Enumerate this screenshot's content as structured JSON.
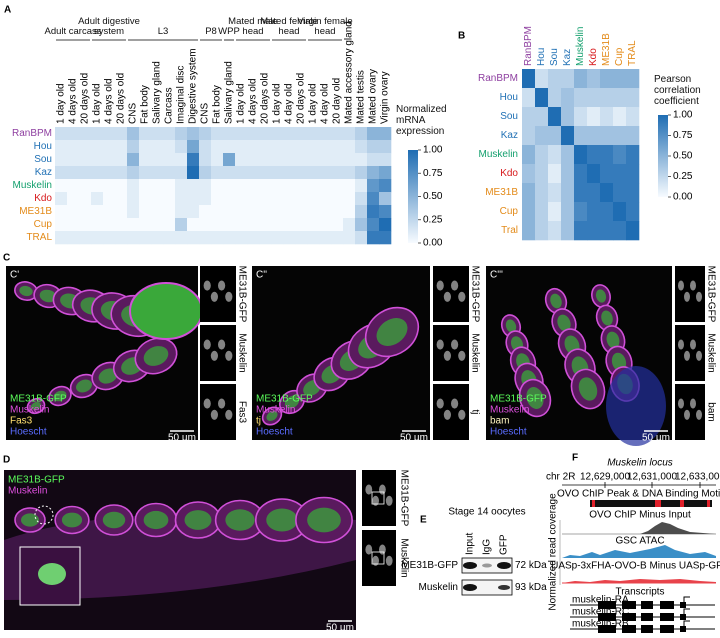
{
  "panels": {
    "A": {
      "label": "A",
      "groups": [
        {
          "name": "Adult carcass",
          "columns": [
            "1 day old",
            "4 days old",
            "20 days old"
          ]
        },
        {
          "name": "Adult digestive system",
          "columns": [
            "1 day old",
            "4 days old",
            "20 days old"
          ]
        },
        {
          "name": "L3",
          "columns": [
            "CNS",
            "Fat body",
            "Salivary gland",
            "Carcass",
            "Imaginal disc",
            "Digestive system"
          ]
        },
        {
          "name": "P8",
          "columns": [
            "CNS",
            "Fat body"
          ]
        },
        {
          "name": "WPP",
          "columns": [
            "Salivary gland"
          ]
        },
        {
          "name": "Mated male head",
          "columns": [
            "1 day old",
            "4 days old",
            "20 days old"
          ]
        },
        {
          "name": "Mated female head",
          "columns": [
            "1 day old",
            "4 day old",
            "20 days old"
          ]
        },
        {
          "name": "Virgin female head",
          "columns": [
            "1 day old",
            "4 day old",
            "20 day old"
          ]
        }
      ],
      "ungrouped_columns": [
        "Mated accessory gland",
        "Mated testis",
        "Mated ovary",
        "Virgin ovary"
      ],
      "rows": [
        "RanBPM",
        "Hou",
        "Sou",
        "Kaz",
        "Muskelin",
        "Kdo",
        "ME31B",
        "Cup",
        "TRAL"
      ],
      "row_colors": [
        "#8e3fa0",
        "#2171b5",
        "#2171b5",
        "#2171b5",
        "#14a06e",
        "#d7191c",
        "#e38b1a",
        "#e38b1a",
        "#e38b1a"
      ],
      "values": [
        [
          0.2,
          0.2,
          0.2,
          0.2,
          0.2,
          0.2,
          0.4,
          0.2,
          0.2,
          0.2,
          0.3,
          0.4,
          0.3,
          0.2,
          0.2,
          0.2,
          0.2,
          0.2,
          0.2,
          0.2,
          0.2,
          0.2,
          0.2,
          0.2,
          0.2,
          0.3,
          0.5,
          0.5
        ],
        [
          0.1,
          0.1,
          0.1,
          0.1,
          0.1,
          0.1,
          0.3,
          0.1,
          0.1,
          0.1,
          0.2,
          0.6,
          0.2,
          0.1,
          0.1,
          0.1,
          0.1,
          0.1,
          0.1,
          0.1,
          0.1,
          0.1,
          0.1,
          0.1,
          0.1,
          0.2,
          0.3,
          0.3
        ],
        [
          0.1,
          0.1,
          0.1,
          0.1,
          0.1,
          0.1,
          0.5,
          0.1,
          0.1,
          0.1,
          0.1,
          0.9,
          0.2,
          0.1,
          0.6,
          0.1,
          0.1,
          0.1,
          0.1,
          0.1,
          0.1,
          0.1,
          0.1,
          0.1,
          0.1,
          0.1,
          0.2,
          0.2
        ],
        [
          0.2,
          0.2,
          0.2,
          0.2,
          0.2,
          0.2,
          0.3,
          0.2,
          0.2,
          0.2,
          0.2,
          1.0,
          0.3,
          0.2,
          0.2,
          0.2,
          0.2,
          0.2,
          0.2,
          0.2,
          0.2,
          0.2,
          0.2,
          0.2,
          0.2,
          0.3,
          0.5,
          0.6
        ],
        [
          0,
          0,
          0,
          0,
          0,
          0,
          0.1,
          0,
          0,
          0,
          0.1,
          0.1,
          0.1,
          0,
          0,
          0,
          0,
          0,
          0,
          0,
          0,
          0,
          0,
          0,
          0,
          0.1,
          0.7,
          0.8
        ],
        [
          0.1,
          0,
          0,
          0.1,
          0,
          0,
          0.1,
          0,
          0,
          0,
          0.1,
          0.1,
          0.1,
          0,
          0,
          0,
          0,
          0,
          0,
          0,
          0,
          0,
          0,
          0,
          0,
          0.2,
          0.8,
          0.4
        ],
        [
          0,
          0,
          0,
          0,
          0,
          0,
          0.1,
          0,
          0,
          0,
          0.1,
          0.1,
          0,
          0,
          0,
          0,
          0,
          0,
          0,
          0,
          0,
          0,
          0,
          0,
          0,
          0.3,
          0.9,
          0.8
        ],
        [
          0,
          0,
          0,
          0,
          0,
          0,
          0,
          0,
          0,
          0,
          0.3,
          0,
          0,
          0,
          0,
          0,
          0,
          0,
          0,
          0,
          0,
          0,
          0,
          0,
          0.1,
          0.4,
          0.8,
          1.0
        ],
        [
          0.1,
          0.1,
          0.1,
          0.1,
          0.1,
          0.1,
          0.1,
          0.1,
          0.1,
          0.1,
          0.1,
          0.1,
          0.1,
          0.1,
          0.1,
          0.1,
          0.1,
          0.1,
          0.1,
          0.1,
          0.1,
          0.1,
          0.1,
          0.1,
          0.1,
          0.2,
          0.9,
          0.9
        ]
      ],
      "colormap": [
        "#f7fbff",
        "#1f6db3"
      ],
      "colorbar": {
        "title": "Normalized mRNA expression",
        "lim": [
          0,
          1
        ],
        "ticks": [
          {
            "value": 0,
            "label": "0.00"
          },
          {
            "value": 0.25,
            "label": "0.25"
          },
          {
            "value": 0.5,
            "label": "0.50"
          },
          {
            "value": 0.75,
            "label": "0.75"
          },
          {
            "value": 1,
            "label": "1.00"
          }
        ]
      }
    },
    "B": {
      "label": "B",
      "columns": [
        "RanBPM",
        "Hou",
        "Sou",
        "Kaz",
        "Muskelin",
        "Kdo",
        "ME31B",
        "Cup",
        "TRAL"
      ],
      "rows": [
        "RanBPM",
        "Hou",
        "Sou",
        "Kaz",
        "Muskelin",
        "Kdo",
        "ME31B",
        "Cup",
        "Tral"
      ],
      "label_colors": [
        "#8e3fa0",
        "#2171b5",
        "#2171b5",
        "#2171b5",
        "#14a06e",
        "#d7191c",
        "#e38b1a",
        "#e38b1a",
        "#e38b1a"
      ],
      "values": [
        [
          1,
          0.2,
          0.3,
          0.3,
          0.5,
          0.4,
          0.5,
          0.5,
          0.5
        ],
        [
          0.2,
          1,
          0.3,
          0.4,
          0.3,
          0.3,
          0.3,
          0.3,
          0.3
        ],
        [
          0.3,
          0.3,
          1,
          0.4,
          0.2,
          0.1,
          0.2,
          0.1,
          0.2
        ],
        [
          0.3,
          0.4,
          0.4,
          1,
          0.4,
          0.4,
          0.4,
          0.4,
          0.4
        ],
        [
          0.5,
          0.3,
          0.2,
          0.4,
          1,
          0.9,
          0.9,
          0.8,
          0.9
        ],
        [
          0.4,
          0.3,
          0.1,
          0.4,
          0.9,
          1,
          0.9,
          0.9,
          0.9
        ],
        [
          0.5,
          0.3,
          0.2,
          0.4,
          0.9,
          0.9,
          1,
          0.9,
          0.9
        ],
        [
          0.5,
          0.3,
          0.1,
          0.4,
          0.8,
          0.9,
          0.9,
          1,
          0.9
        ],
        [
          0.5,
          0.3,
          0.2,
          0.4,
          0.9,
          0.9,
          0.9,
          0.9,
          1
        ]
      ],
      "colormap": [
        "#f7fbff",
        "#1f6db3"
      ],
      "colorbar": {
        "title": "Pearson correlation coefficient",
        "lim": [
          0,
          1
        ],
        "ticks": [
          {
            "value": 0,
            "label": "0.00"
          },
          {
            "value": 0.25,
            "label": "0.25"
          },
          {
            "value": 0.5,
            "label": "0.50"
          },
          {
            "value": 0.75,
            "label": "0.75"
          },
          {
            "value": 1,
            "label": "1.00"
          }
        ]
      }
    },
    "C": {
      "label": "C",
      "images": [
        {
          "label": "C'",
          "overlay": [
            {
              "text": "ME31B-GFP",
              "color": "#5cff5c"
            },
            {
              "text": "Muskelin",
              "color": "#e050e0"
            },
            {
              "text": "Fas3",
              "color": "#ffe070"
            },
            {
              "text": "Hoescht",
              "color": "#5a6cff"
            }
          ],
          "scale": "50 µm",
          "side": [
            "ME31B-GFP",
            "Muskelin",
            "Fas3"
          ]
        },
        {
          "label": "C''",
          "overlay": [
            {
              "text": "ME31B-GFP",
              "color": "#5cff5c"
            },
            {
              "text": "Muskelin",
              "color": "#e050e0"
            },
            {
              "text": "tj",
              "color": "#ffe070"
            },
            {
              "text": "Hoescht",
              "color": "#5a6cff"
            }
          ],
          "scale": "50 µm",
          "side": [
            "ME31B-GFP",
            "Muskelin",
            "tj"
          ]
        },
        {
          "label": "C'''",
          "overlay": [
            {
              "text": "ME31B-GFP",
              "color": "#5cff5c"
            },
            {
              "text": "Muskelin",
              "color": "#e050e0"
            },
            {
              "text": "bam",
              "color": "#fff6c0"
            },
            {
              "text": "Hoescht",
              "color": "#5a6cff"
            }
          ],
          "scale": "50 µm",
          "side": [
            "ME31B-GFP",
            "Muskelin",
            "bam"
          ]
        }
      ]
    },
    "D": {
      "label": "D",
      "overlay": [
        {
          "text": "ME31B-GFP",
          "color": "#5cff5c"
        },
        {
          "text": "Muskelin",
          "color": "#e050e0"
        }
      ],
      "scale": "50 µm",
      "side": [
        "ME31B-GFP",
        "Muskelin"
      ]
    },
    "E": {
      "label": "E",
      "title": "Stage 14 oocytes",
      "lanes": [
        "Input",
        "IgG",
        "GFP"
      ],
      "rows": [
        "ME31B-GFP",
        "Muskelin"
      ],
      "sizes": [
        "72 kDa",
        "93 kDa"
      ]
    },
    "F": {
      "label": "F",
      "title": "Muskelin locus",
      "chromosome": "chr 2R",
      "coordinates": [
        "12,629,000",
        "12,631,000",
        "12,633,000"
      ],
      "tracks": [
        "OVO ChIP Peak & DNA Binding Motif",
        "OVO ChIP Minus Input",
        "GSC ATAC",
        "UASp-3xFHA-OVO-B Minus UASp-GFP"
      ],
      "y_label": "Normalized read coverage",
      "transcripts_title": "Transcripts",
      "transcripts": [
        "muskelin-RA",
        "muskelin-RC",
        "muskelin-RB"
      ]
    }
  }
}
